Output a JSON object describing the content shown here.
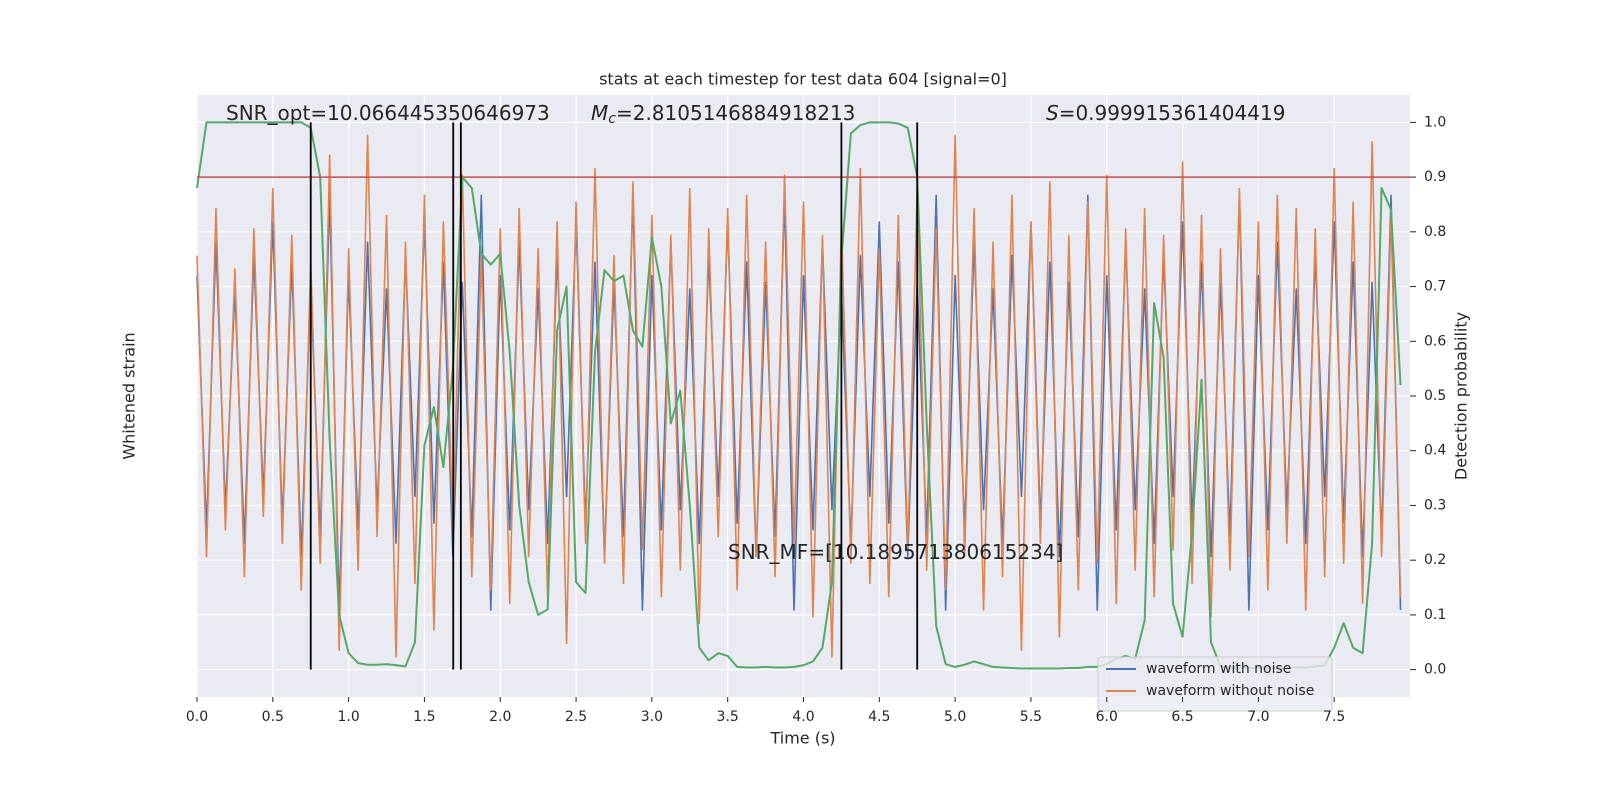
{
  "chart_data": {
    "type": "line",
    "title": "stats at each timestep for test data 604 [signal=0]",
    "xlabel": "Time (s)",
    "ylabel": "Whitened strain",
    "y2label": "Detection probability",
    "xlim": [
      0,
      8
    ],
    "ylim": [
      -4.5,
      4.5
    ],
    "y2lim": [
      -0.05,
      1.05
    ],
    "grid": true,
    "legend": "lower right",
    "xticks": [
      {
        "value": 0,
        "label": "0.0"
      },
      {
        "value": 0.5,
        "label": "0.5"
      },
      {
        "value": 1,
        "label": "1.0"
      },
      {
        "value": 1.5,
        "label": "1.5"
      },
      {
        "value": 2,
        "label": "2.0"
      },
      {
        "value": 2.5,
        "label": "2.5"
      },
      {
        "value": 3,
        "label": "3.0"
      },
      {
        "value": 3.5,
        "label": "3.5"
      },
      {
        "value": 4,
        "label": "4.0"
      },
      {
        "value": 4.5,
        "label": "4.5"
      },
      {
        "value": 5,
        "label": "5.0"
      },
      {
        "value": 5.5,
        "label": "5.5"
      },
      {
        "value": 6,
        "label": "6.0"
      },
      {
        "value": 6.5,
        "label": "6.5"
      },
      {
        "value": 7,
        "label": "7.0"
      },
      {
        "value": 7.5,
        "label": "7.5"
      }
    ],
    "y2ticks": [
      {
        "value": 0,
        "label": "0.0"
      },
      0.1,
      0.2,
      0.3,
      0.4,
      0.5,
      0.6,
      0.7,
      0.8,
      0.9,
      {
        "value": 1,
        "label": "1.0"
      }
    ],
    "x": [
      0,
      0.0625,
      0.125,
      0.1875,
      0.25,
      0.3125,
      0.375,
      0.4375,
      0.5,
      0.5625,
      0.625,
      0.6875,
      0.75,
      0.8125,
      0.875,
      0.9375,
      1,
      1.0625,
      1.125,
      1.1875,
      1.25,
      1.3125,
      1.375,
      1.4375,
      1.5,
      1.5625,
      1.625,
      1.6875,
      1.75,
      1.8125,
      1.875,
      1.9375,
      2,
      2.0625,
      2.125,
      2.1875,
      2.25,
      2.3125,
      2.375,
      2.4375,
      2.5,
      2.5625,
      2.625,
      2.6875,
      2.75,
      2.8125,
      2.875,
      2.9375,
      3,
      3.0625,
      3.125,
      3.1875,
      3.25,
      3.3125,
      3.375,
      3.4375,
      3.5,
      3.5625,
      3.625,
      3.6875,
      3.75,
      3.8125,
      3.875,
      3.9375,
      4,
      4.0625,
      4.125,
      4.1875,
      4.25,
      4.3125,
      4.375,
      4.4375,
      4.5,
      4.5625,
      4.625,
      4.6875,
      4.75,
      4.8125,
      4.875,
      4.9375,
      5,
      5.0625,
      5.125,
      5.1875,
      5.25,
      5.3125,
      5.375,
      5.4375,
      5.5,
      5.5625,
      5.625,
      5.6875,
      5.75,
      5.8125,
      5.875,
      5.9375,
      6,
      6.0625,
      6.125,
      6.1875,
      6.25,
      6.3125,
      6.375,
      6.4375,
      6.5,
      6.5625,
      6.625,
      6.6875,
      6.75,
      6.8125,
      6.875,
      6.9375,
      7,
      7.0625,
      7.125,
      7.1875,
      7.25,
      7.3125,
      7.375,
      7.4375,
      7.5,
      7.5625,
      7.625,
      7.6875,
      7.75,
      7.8125,
      7.875,
      7.9375
    ],
    "series": [
      {
        "name": "waveform with noise",
        "color": "#4c72b0",
        "values": [
          1.8,
          -2.0,
          2.3,
          -1.7,
          1.6,
          -2.2,
          2.1,
          -1.5,
          2.6,
          -1.9,
          2.0,
          -2.4,
          1.7,
          -2.1,
          3.0,
          -3.2,
          1.8,
          -2.0,
          2.3,
          -1.7,
          1.6,
          -2.2,
          2.1,
          -1.5,
          2.6,
          -1.9,
          2.0,
          -2.4,
          1.7,
          -2.1,
          3.0,
          -3.2,
          1.8,
          -2.0,
          2.3,
          -1.7,
          1.6,
          -2.2,
          2.1,
          -1.5,
          2.6,
          -1.9,
          2.0,
          -2.4,
          1.7,
          -2.1,
          3.0,
          -3.2,
          1.8,
          -2.0,
          2.3,
          -1.7,
          1.6,
          -2.2,
          2.1,
          -1.5,
          2.6,
          -1.9,
          2.0,
          -2.4,
          1.7,
          -2.1,
          3.0,
          -3.2,
          1.8,
          -2.0,
          2.3,
          -1.7,
          1.6,
          -2.2,
          2.1,
          -1.5,
          2.6,
          -1.9,
          2.0,
          -2.4,
          1.7,
          -2.1,
          3.0,
          -3.2,
          1.8,
          -2.0,
          2.3,
          -1.7,
          1.6,
          -2.2,
          2.1,
          -1.5,
          2.6,
          -1.9,
          2.0,
          -2.4,
          1.7,
          -2.1,
          3.0,
          -3.2,
          1.8,
          -2.0,
          2.3,
          -1.7,
          1.6,
          -2.2,
          2.1,
          -1.5,
          2.6,
          -1.9,
          2.0,
          -2.4,
          1.7,
          -2.1,
          3.0,
          -3.2,
          1.8,
          -2.0,
          2.3,
          -1.7,
          1.6,
          -2.2,
          2.1,
          -1.5,
          2.6,
          -1.9,
          2.0,
          -2.4,
          1.7,
          -2.1,
          3.0,
          -3.2
        ]
      },
      {
        "name": "waveform without noise",
        "color": "#dd8452",
        "values": [
          2.1,
          -2.4,
          2.8,
          -2.0,
          1.9,
          -2.7,
          2.5,
          -1.8,
          3.1,
          -2.2,
          2.4,
          -2.9,
          2.0,
          -2.5,
          3.6,
          -3.8,
          2.2,
          -2.6,
          3.9,
          -2.1,
          2.7,
          -3.9,
          2.3,
          -2.8,
          3.0,
          -3.5,
          2.6,
          -2.0,
          3.3,
          -2.7,
          2.1,
          -2.9,
          2.5,
          -3.1,
          2.8,
          -2.4,
          2.2,
          -3.0,
          2.6,
          -3.7,
          2.9,
          -2.2,
          3.4,
          -2.5,
          2.1,
          -2.8,
          3.2,
          -2.3,
          2.7,
          -3.0,
          2.4,
          -2.6,
          3.1,
          -3.4,
          2.5,
          -2.1,
          2.8,
          -2.9,
          3.0,
          -2.4,
          2.3,
          -2.7,
          3.3,
          -2.2,
          2.9,
          -3.3,
          2.4,
          -3.9,
          2.6,
          -2.5,
          3.4,
          -2.8,
          2.2,
          -3.0,
          2.7,
          -2.3,
          3.1,
          -2.6,
          2.5,
          -2.9,
          3.9,
          -2.4,
          2.8,
          -3.2,
          2.3,
          -2.7,
          3.0,
          -3.8,
          2.6,
          -2.2,
          3.2,
          -3.6,
          2.4,
          -2.9,
          2.9,
          -2.5,
          3.3,
          -3.1,
          2.5,
          -2.6,
          2.8,
          -3.0,
          2.4,
          -2.3,
          3.5,
          -2.8,
          2.7,
          -3.3,
          2.2,
          -2.6,
          3.1,
          -2.4,
          2.6,
          -2.9,
          3.0,
          -2.2,
          2.8,
          -3.2,
          2.5,
          -2.7,
          3.4,
          -2.5,
          2.9,
          -3.1,
          3.8,
          -2.4,
          2.7,
          -3.0
        ]
      },
      {
        "color": "#55a868",
        "axis": "y2",
        "values": [
          0.88,
          1.0,
          1.0,
          1.0,
          1.0,
          1.0,
          1.0,
          1.0,
          1.0,
          1.0,
          1.0,
          1.0,
          0.99,
          0.9,
          0.42,
          0.1,
          0.03,
          0.012,
          0.009,
          0.009,
          0.01,
          0.008,
          0.006,
          0.05,
          0.41,
          0.48,
          0.37,
          0.55,
          0.9,
          0.88,
          0.76,
          0.74,
          0.76,
          0.58,
          0.3,
          0.16,
          0.1,
          0.11,
          0.62,
          0.7,
          0.16,
          0.14,
          0.58,
          0.73,
          0.71,
          0.72,
          0.62,
          0.59,
          0.79,
          0.7,
          0.45,
          0.51,
          0.3,
          0.04,
          0.017,
          0.03,
          0.025,
          0.005,
          0.004,
          0.004,
          0.005,
          0.004,
          0.004,
          0.005,
          0.008,
          0.015,
          0.04,
          0.16,
          0.75,
          0.98,
          0.995,
          1.0,
          1.0,
          1.0,
          0.998,
          0.99,
          0.9,
          0.45,
          0.08,
          0.01,
          0.005,
          0.009,
          0.015,
          0.01,
          0.005,
          0.004,
          0.003,
          0.002,
          0.002,
          0.002,
          0.002,
          0.002,
          0.003,
          0.003,
          0.005,
          0.005,
          0.01,
          0.02,
          0.025,
          0.02,
          0.09,
          0.67,
          0.57,
          0.12,
          0.06,
          0.25,
          0.53,
          0.05,
          0.006,
          0.004,
          0.003,
          0.003,
          0.003,
          0.003,
          0.003,
          0.003,
          0.004,
          0.004,
          0.006,
          0.008,
          0.04,
          0.085,
          0.04,
          0.03,
          0.23,
          0.88,
          0.84,
          0.52
        ]
      }
    ],
    "hlines": [
      {
        "value": 0.9,
        "axis": "y2",
        "color": "#c44e52"
      }
    ],
    "vlines": {
      "values": [
        0.75,
        1.69,
        1.74,
        4.25,
        4.75
      ],
      "from": 0,
      "to": 1,
      "color": "#000000"
    },
    "annotations": [
      {
        "text": "SNR_opt=10.066445350646973"
      },
      {
        "symbol": "M",
        "subscript": "c",
        "text": "=2.8105146884918213"
      },
      {
        "symbol": "S",
        "text": "=0.999915361404419"
      },
      {
        "text": "SNR_MF=[10.189571380615234]"
      }
    ]
  }
}
